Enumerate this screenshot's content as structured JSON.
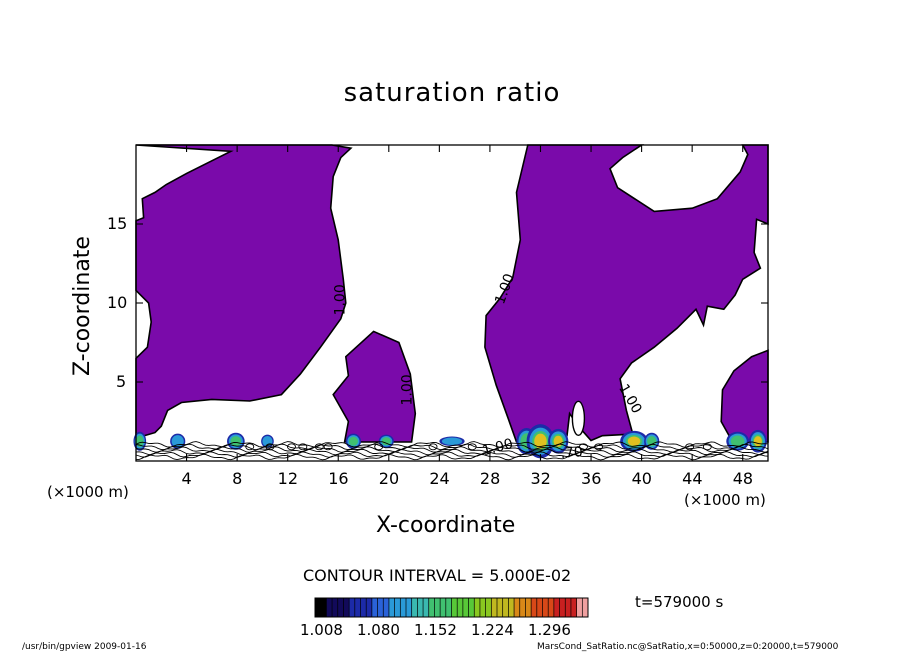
{
  "chart_data": {
    "type": "contour",
    "title": "saturation ratio",
    "xlabel": "X-coordinate",
    "ylabel": "Z-coordinate",
    "x_unit_label": "(×1000 m)",
    "y_unit_label": "(×1000 m)",
    "xlim": [
      0,
      50
    ],
    "ylim": [
      0,
      20
    ],
    "x_ticks": [
      4,
      8,
      12,
      16,
      20,
      24,
      28,
      32,
      36,
      40,
      44,
      48
    ],
    "y_ticks": [
      5,
      10,
      15
    ],
    "contour_labels": [
      {
        "text": "1.00",
        "x": 16.5,
        "z": 10.2
      },
      {
        "text": "1.00",
        "x": 21.8,
        "z": 4.5
      },
      {
        "text": "1.00",
        "x": 29.5,
        "z": 10.8
      },
      {
        "text": "1.00",
        "x": 38.8,
        "z": 3.8
      },
      {
        "text": "1.00",
        "x": 28.7,
        "z": 0.6
      },
      {
        "text": ".70",
        "x": 34.5,
        "z": 0.25
      }
    ],
    "shaded_region_note": "saturation ratio >= 1.00",
    "contour_interval": "CONTOUR INTERVAL = 5.000E-02",
    "colorbar": {
      "tick_labels": [
        "1.008",
        "1.080",
        "1.152",
        "1.224",
        "1.296"
      ],
      "min": 1.008,
      "max": 1.296
    },
    "time": "t=579000  s"
  },
  "colors": {
    "saturated_fill": "#7a0aaa",
    "contour": "#000000",
    "background": "#ffffff"
  },
  "footer": {
    "left": "/usr/bin/gpview   2009-01-16",
    "right": "MarsCond_SatRatio.nc@SatRatio,x=0:50000,z=0:20000,t=579000"
  }
}
